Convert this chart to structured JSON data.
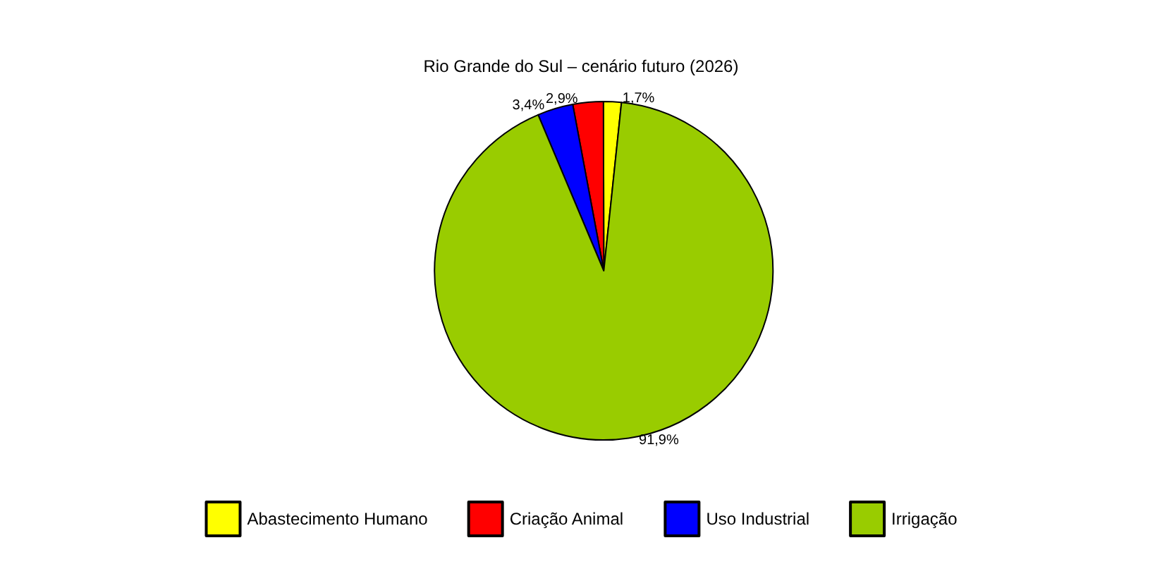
{
  "chart_data": {
    "type": "pie",
    "title": "Rio Grande do Sul – cenário futuro (2026)",
    "categories": [
      "Abastecimento Humano",
      "Criação Animal",
      "Uso Industrial",
      "Irrigação"
    ],
    "values": [
      1.7,
      2.9,
      3.4,
      91.9
    ],
    "colors": [
      "#ffff00",
      "#ff0000",
      "#0000ff",
      "#99cc00"
    ],
    "value_labels": [
      "1,7%",
      "2,9%",
      "3,4%",
      "91,9%"
    ],
    "legend": "bottom"
  }
}
